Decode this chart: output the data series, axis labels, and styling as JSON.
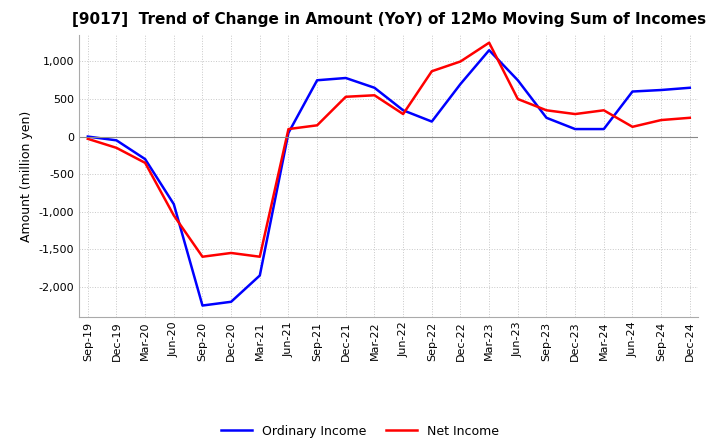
{
  "title": "[9017]  Trend of Change in Amount (YoY) of 12Mo Moving Sum of Incomes",
  "ylabel": "Amount (million yen)",
  "x_labels": [
    "Sep-19",
    "Dec-19",
    "Mar-20",
    "Jun-20",
    "Sep-20",
    "Dec-20",
    "Mar-21",
    "Jun-21",
    "Sep-21",
    "Dec-21",
    "Mar-22",
    "Jun-22",
    "Sep-22",
    "Dec-22",
    "Mar-23",
    "Jun-23",
    "Sep-23",
    "Dec-23",
    "Mar-24",
    "Jun-24",
    "Sep-24",
    "Dec-24"
  ],
  "ordinary_income": [
    0,
    -50,
    -300,
    -900,
    -2250,
    -2200,
    -1850,
    50,
    750,
    780,
    650,
    350,
    200,
    700,
    1150,
    750,
    250,
    100,
    100,
    600,
    620,
    650
  ],
  "net_income": [
    -30,
    -150,
    -350,
    -1050,
    -1600,
    -1550,
    -1600,
    100,
    150,
    530,
    550,
    300,
    870,
    1000,
    1250,
    500,
    350,
    300,
    350,
    130,
    220,
    250
  ],
  "ordinary_color": "#0000ff",
  "net_color": "#ff0000",
  "ylim": [
    -2400,
    1350
  ],
  "yticks": [
    -2000,
    -1500,
    -1000,
    -500,
    0,
    500,
    1000
  ],
  "grid_color": "#c8c8c8",
  "grid_linestyle": "dotted",
  "background_color": "#ffffff",
  "title_fontsize": 11,
  "axis_fontsize": 9,
  "tick_fontsize": 8,
  "legend_labels": [
    "Ordinary Income",
    "Net Income"
  ],
  "line_width": 1.8
}
